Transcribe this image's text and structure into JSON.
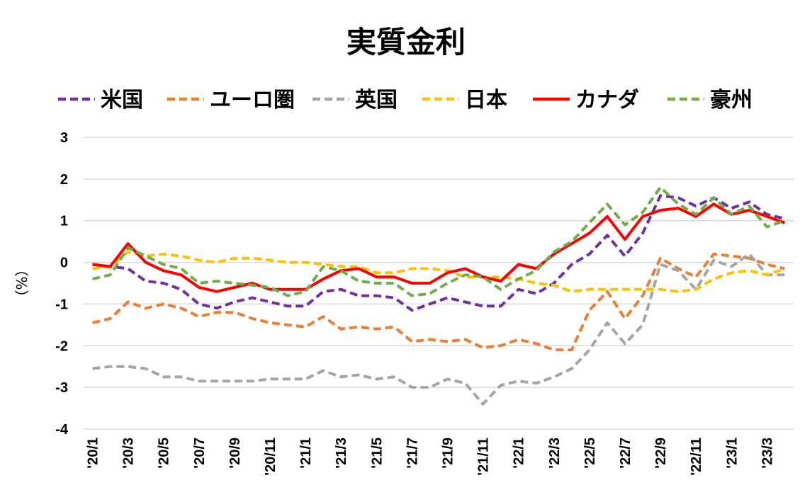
{
  "chart_data": {
    "type": "line",
    "title": "実質金利",
    "ylabel": "（%）",
    "ylim": [
      -4,
      3
    ],
    "yticks": [
      "3",
      "2",
      "1",
      "0",
      "-1",
      "-2",
      "-3",
      "-4"
    ],
    "grid": true,
    "legend_position": "top",
    "x": [
      "'20/1",
      "'20/2",
      "'20/3",
      "'20/4",
      "'20/5",
      "'20/6",
      "'20/7",
      "'20/8",
      "'20/9",
      "'20/10",
      "'20/11",
      "'20/12",
      "'21/1",
      "'21/2",
      "'21/3",
      "'21/4",
      "'21/5",
      "'21/6",
      "'21/7",
      "'21/8",
      "'21/9",
      "'21/10",
      "'21/11",
      "'21/12",
      "'22/1",
      "'22/2",
      "'22/3",
      "'22/4",
      "'22/5",
      "'22/6",
      "'22/7",
      "'22/8",
      "'22/9",
      "'22/10",
      "'22/11",
      "'22/12",
      "'23/1",
      "'23/2",
      "'23/3",
      "'23/4"
    ],
    "x_tick_labels": [
      "'20/1",
      "",
      "'20/3",
      "",
      "'20/5",
      "",
      "'20/7",
      "",
      "'20/9",
      "",
      "'20/11",
      "",
      "'21/1",
      "",
      "'21/3",
      "",
      "'21/5",
      "",
      "'21/7",
      "",
      "'21/9",
      "",
      "'21/11",
      "",
      "'22/1",
      "",
      "'22/3",
      "",
      "'22/5",
      "",
      "'22/7",
      "",
      "'22/9",
      "",
      "'22/11",
      "",
      "'23/1",
      "",
      "'23/3",
      ""
    ],
    "series": [
      {
        "name": "米国",
        "color": "#7030a0",
        "dash": true,
        "values": [
          -0.05,
          -0.1,
          -0.15,
          -0.45,
          -0.5,
          -0.65,
          -1.0,
          -1.1,
          -0.95,
          -0.85,
          -0.95,
          -1.05,
          -1.05,
          -0.7,
          -0.65,
          -0.8,
          -0.8,
          -0.85,
          -1.15,
          -1.0,
          -0.85,
          -0.95,
          -1.05,
          -1.05,
          -0.65,
          -0.75,
          -0.5,
          -0.05,
          0.2,
          0.65,
          0.15,
          0.7,
          1.6,
          1.55,
          1.35,
          1.55,
          1.3,
          1.45,
          1.15,
          1.05
        ]
      },
      {
        "name": "ユーロ圏",
        "color": "#ed7d31",
        "dash": true,
        "values": [
          -1.45,
          -1.35,
          -0.95,
          -1.1,
          -1.0,
          -1.1,
          -1.3,
          -1.2,
          -1.2,
          -1.35,
          -1.45,
          -1.5,
          -1.55,
          -1.3,
          -1.6,
          -1.55,
          -1.6,
          -1.55,
          -1.9,
          -1.85,
          -1.9,
          -1.85,
          -2.05,
          -2.0,
          -1.85,
          -1.95,
          -2.1,
          -2.1,
          -1.15,
          -0.7,
          -1.35,
          -0.8,
          0.1,
          -0.15,
          -0.35,
          0.2,
          0.15,
          0.1,
          -0.05,
          -0.15
        ]
      },
      {
        "name": "英国",
        "color": "#a5a5a5",
        "dash": true,
        "values": [
          -2.55,
          -2.5,
          -2.5,
          -2.55,
          -2.75,
          -2.75,
          -2.85,
          -2.85,
          -2.85,
          -2.85,
          -2.8,
          -2.8,
          -2.8,
          -2.6,
          -2.75,
          -2.7,
          -2.8,
          -2.75,
          -3.0,
          -3.0,
          -2.8,
          -2.9,
          -3.4,
          -2.95,
          -2.85,
          -2.9,
          -2.75,
          -2.55,
          -2.1,
          -1.45,
          -1.95,
          -1.5,
          -0.05,
          -0.2,
          -0.65,
          0.05,
          -0.1,
          0.2,
          -0.3,
          -0.3
        ]
      },
      {
        "name": "日本",
        "color": "#ffc000",
        "dash": true,
        "values": [
          -0.15,
          -0.1,
          0.25,
          0.15,
          0.2,
          0.15,
          0.05,
          0.0,
          0.1,
          0.1,
          0.05,
          0.0,
          0.0,
          -0.05,
          -0.1,
          -0.1,
          -0.25,
          -0.25,
          -0.15,
          -0.15,
          -0.2,
          -0.35,
          -0.35,
          -0.35,
          -0.4,
          -0.5,
          -0.55,
          -0.7,
          -0.65,
          -0.65,
          -0.65,
          -0.65,
          -0.65,
          -0.7,
          -0.65,
          -0.4,
          -0.25,
          -0.2,
          -0.3,
          -0.15
        ]
      },
      {
        "name": "カナダ",
        "color": "#ff0000",
        "dash": false,
        "values": [
          -0.05,
          -0.1,
          0.45,
          0.0,
          -0.2,
          -0.3,
          -0.6,
          -0.7,
          -0.6,
          -0.5,
          -0.65,
          -0.65,
          -0.65,
          -0.4,
          -0.2,
          -0.15,
          -0.35,
          -0.35,
          -0.5,
          -0.5,
          -0.25,
          -0.15,
          -0.35,
          -0.45,
          -0.05,
          -0.15,
          0.2,
          0.45,
          0.7,
          1.1,
          0.55,
          1.1,
          1.25,
          1.3,
          1.1,
          1.4,
          1.15,
          1.25,
          1.1,
          0.95
        ]
      },
      {
        "name": "豪州",
        "color": "#70ad47",
        "dash": true,
        "values": [
          -0.4,
          -0.3,
          0.35,
          0.15,
          -0.05,
          -0.15,
          -0.5,
          -0.45,
          -0.5,
          -0.55,
          -0.6,
          -0.8,
          -0.7,
          -0.1,
          -0.2,
          -0.45,
          -0.5,
          -0.5,
          -0.8,
          -0.75,
          -0.5,
          -0.3,
          -0.35,
          -0.65,
          -0.4,
          -0.2,
          0.25,
          0.5,
          0.95,
          1.4,
          0.9,
          1.2,
          1.8,
          1.4,
          1.15,
          1.55,
          1.15,
          1.35,
          0.85,
          1.0
        ]
      }
    ]
  }
}
